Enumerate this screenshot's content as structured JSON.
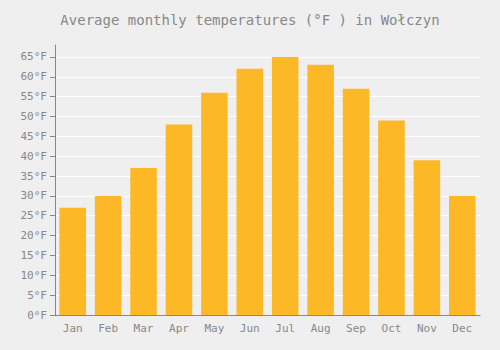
{
  "chart_data": {
    "type": "bar",
    "title": "Average monthly temperatures (°F ) in Wołczyn",
    "categories": [
      "Jan",
      "Feb",
      "Mar",
      "Apr",
      "May",
      "Jun",
      "Jul",
      "Aug",
      "Sep",
      "Oct",
      "Nov",
      "Dec"
    ],
    "values": [
      27,
      30,
      37,
      48,
      56,
      62,
      65,
      63,
      57,
      49,
      39,
      30
    ],
    "color": "#FDB827",
    "ylim": [
      0,
      68
    ],
    "yticks": [
      {
        "value": 0,
        "label": "0°F"
      },
      {
        "value": 5,
        "label": "5°F"
      },
      {
        "value": 10,
        "label": "10°F"
      },
      {
        "value": 15,
        "label": "15°F"
      },
      {
        "value": 20,
        "label": "20°F"
      },
      {
        "value": 25,
        "label": "25°F"
      },
      {
        "value": 30,
        "label": "30°F"
      },
      {
        "value": 35,
        "label": "35°F"
      },
      {
        "value": 40,
        "label": "40°F"
      },
      {
        "value": 45,
        "label": "45°F"
      },
      {
        "value": 50,
        "label": "50°F"
      },
      {
        "value": 55,
        "label": "55°F"
      },
      {
        "value": 60,
        "label": "60°F"
      },
      {
        "value": 65,
        "label": "65°F"
      }
    ],
    "grid": true
  }
}
